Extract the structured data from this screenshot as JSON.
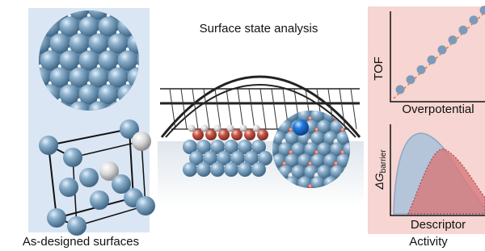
{
  "left_panel": {
    "caption": "As-designed surfaces"
  },
  "center_panel": {
    "title": "Surface state analysis"
  },
  "right_panel": {
    "caption": "Activity",
    "top_plot": {
      "y_label": "TOF",
      "x_label": "Overpotential"
    },
    "bottom_plot": {
      "y_label": "ΔG",
      "y_label_subscript": "barrier",
      "x_label": "Descriptor"
    }
  }
}
